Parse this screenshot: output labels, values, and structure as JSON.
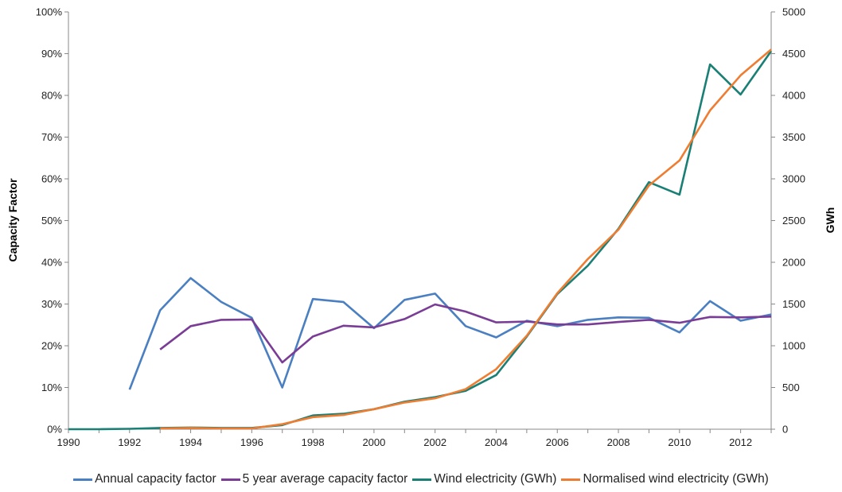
{
  "chart_data": {
    "type": "line",
    "title": "",
    "xlabel": "",
    "ylabel_left": "Capacity Factor",
    "ylabel_right": "GWh",
    "x_range": [
      1990,
      2013
    ],
    "x_ticks": [
      "1990",
      "1992",
      "1994",
      "1996",
      "1998",
      "2000",
      "2002",
      "2004",
      "2006",
      "2008",
      "2010",
      "2012"
    ],
    "y_left_range": [
      0,
      100
    ],
    "y_left_ticks": [
      "0%",
      "10%",
      "20%",
      "30%",
      "40%",
      "50%",
      "60%",
      "70%",
      "80%",
      "90%",
      "100%"
    ],
    "y_right_range": [
      0,
      5000
    ],
    "y_right_ticks": [
      "0",
      "500",
      "1000",
      "1500",
      "2000",
      "2500",
      "3000",
      "3500",
      "4000",
      "4500",
      "5000"
    ],
    "grid": false,
    "legend_position": "bottom",
    "series": [
      {
        "name": "Annual capacity factor",
        "axis": "left",
        "color": "#4a7fc1",
        "x": [
          1992,
          1993,
          1994,
          1995,
          1996,
          1997,
          1998,
          1999,
          2000,
          2001,
          2002,
          2003,
          2004,
          2005,
          2006,
          2007,
          2008,
          2009,
          2010,
          2011,
          2012,
          2013
        ],
        "values": [
          9.5,
          28.5,
          36.2,
          30.5,
          26.7,
          10,
          31.2,
          30.5,
          24.2,
          31,
          32.5,
          24.7,
          22,
          26,
          24.7,
          26.2,
          26.8,
          26.7,
          23.2,
          30.7,
          26,
          27.5
        ]
      },
      {
        "name": "5 year average capacity factor",
        "axis": "left",
        "color": "#7a3d96",
        "x": [
          1993,
          1994,
          1995,
          1996,
          1997,
          1998,
          1999,
          2000,
          2001,
          2002,
          2003,
          2004,
          2005,
          2006,
          2007,
          2008,
          2009,
          2010,
          2011,
          2012,
          2013
        ],
        "values": [
          19.1,
          24.7,
          26.2,
          26.3,
          16,
          22.2,
          24.8,
          24.4,
          26.4,
          29.9,
          28.2,
          25.6,
          25.8,
          25.1,
          25.1,
          25.7,
          26.2,
          25.5,
          26.9,
          26.8,
          27
        ]
      },
      {
        "name": "Wind electricity (GWh)",
        "axis": "right",
        "color": "#1a7f74",
        "x": [
          1990,
          1991,
          1992,
          1993,
          1994,
          1995,
          1996,
          1997,
          1998,
          1999,
          2000,
          2001,
          2002,
          2003,
          2004,
          2005,
          2006,
          2007,
          2008,
          2009,
          2010,
          2011,
          2012,
          2013
        ],
        "values": [
          0,
          0,
          5,
          15,
          20,
          15,
          15,
          50,
          165,
          185,
          240,
          330,
          385,
          460,
          650,
          1110,
          1620,
          1960,
          2400,
          2960,
          2810,
          4370,
          4010,
          4530
        ]
      },
      {
        "name": "Normalised wind electricity (GWh)",
        "axis": "right",
        "color": "#ef7d31",
        "x": [
          1993,
          1994,
          1995,
          1996,
          1997,
          1998,
          1999,
          2000,
          2001,
          2002,
          2003,
          2004,
          2005,
          2006,
          2007,
          2008,
          2009,
          2010,
          2011,
          2012,
          2013
        ],
        "values": [
          10,
          15,
          10,
          10,
          60,
          145,
          170,
          240,
          320,
          370,
          480,
          720,
          1120,
          1630,
          2040,
          2390,
          2920,
          3220,
          3820,
          4240,
          4550
        ]
      }
    ]
  }
}
